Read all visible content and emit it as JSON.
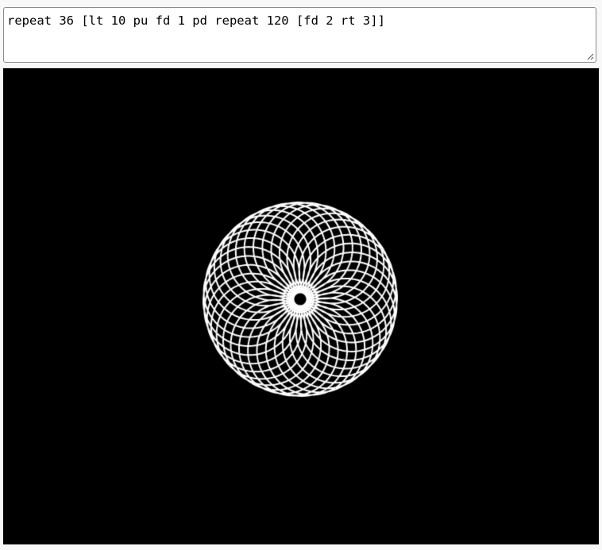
{
  "editor": {
    "code": "repeat 36 [lt 10 pu fd 1 pd repeat 120 [fd 2 rt 3]]"
  },
  "canvas": {
    "background": "#000000",
    "pen_color": "#ffffff"
  }
}
